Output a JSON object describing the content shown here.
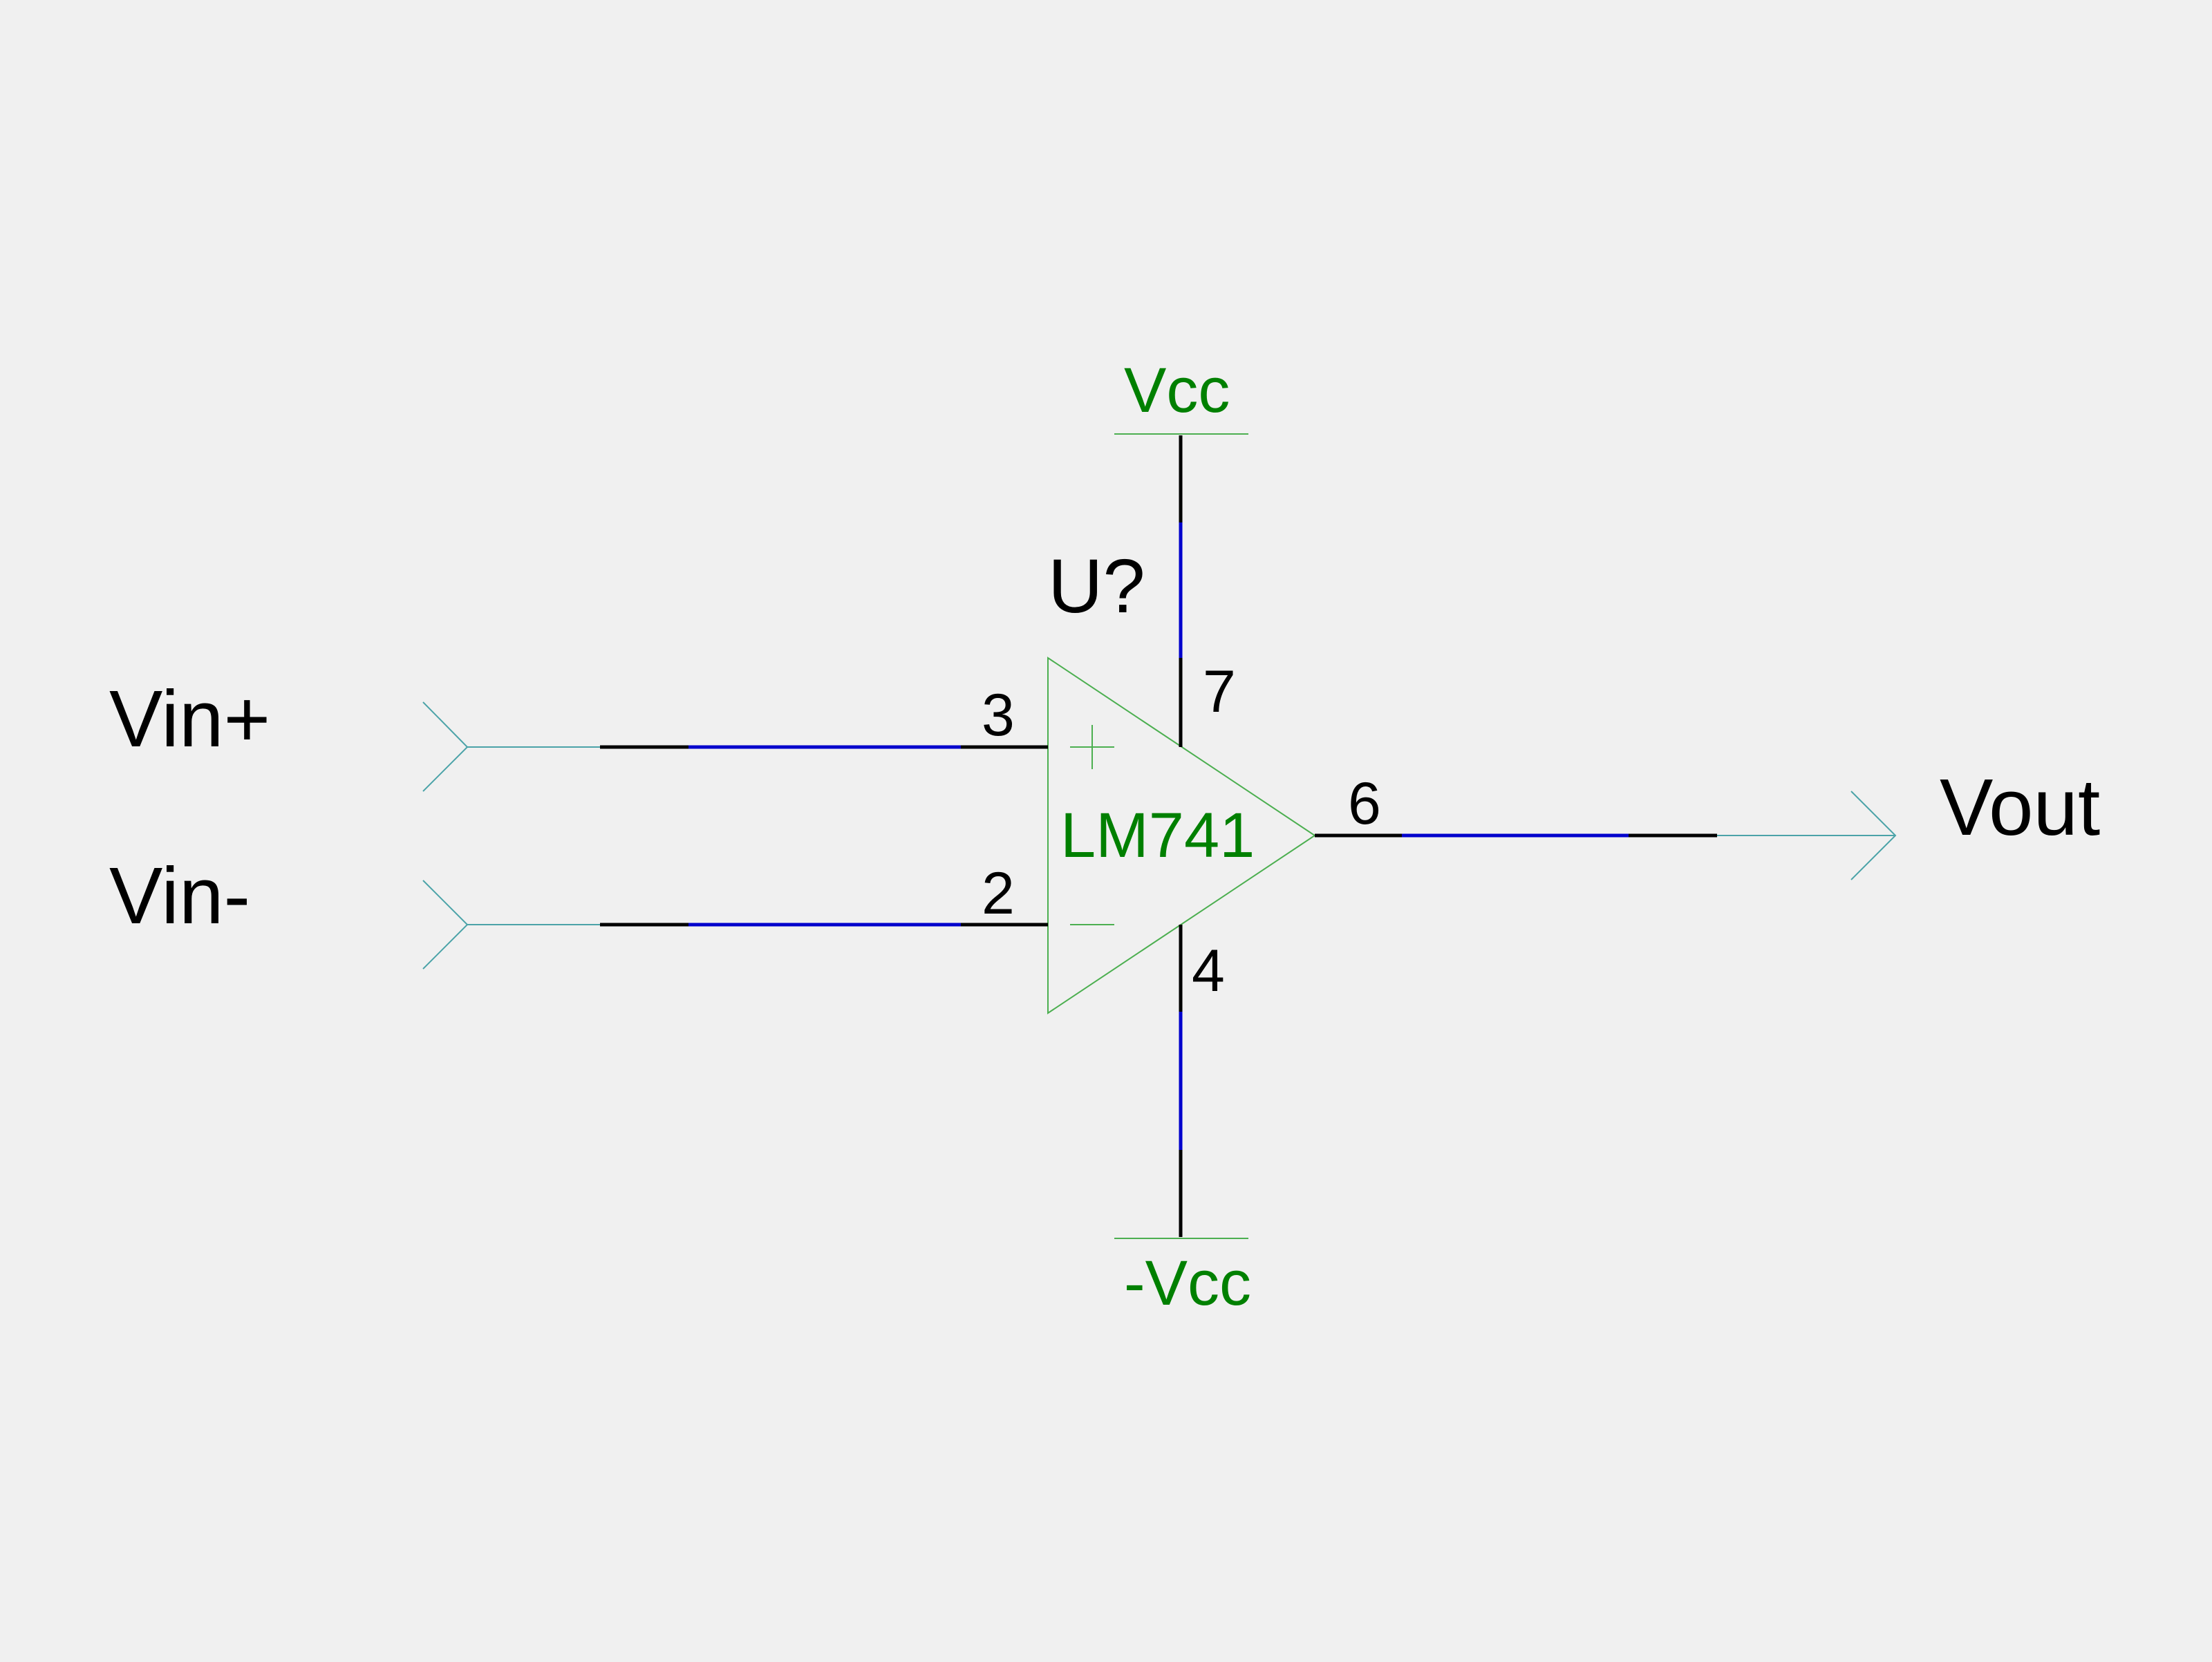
{
  "schematic": {
    "component": {
      "reference": "U?",
      "part": "LM741"
    },
    "pins": {
      "noninverting": "3",
      "inverting": "2",
      "vpos": "7",
      "vneg": "4",
      "output": "6"
    },
    "power": {
      "positive": "Vcc",
      "negative": "-Vcc"
    },
    "ports": {
      "in_plus": "Vin+",
      "in_minus": "Vin-",
      "out": "Vout"
    }
  },
  "colors": {
    "background": "#f0f0f0",
    "wire_black": "#000000",
    "wire_blue": "#0000cc",
    "symbol_green": "#008000",
    "port_teal": "#4ba3a8"
  }
}
